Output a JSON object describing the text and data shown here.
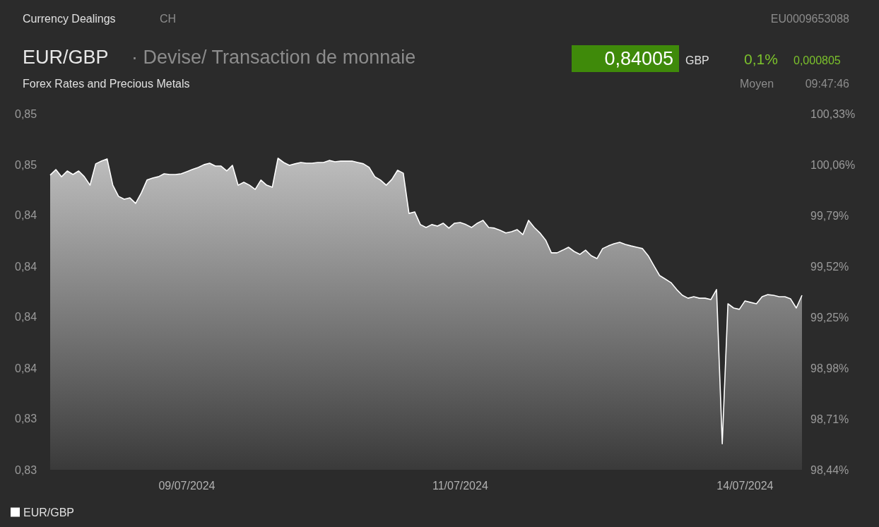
{
  "chart_data": {
    "type": "area",
    "title": "EUR/GBP",
    "subtitle": "· Devise/ Transaction de monnaie",
    "annotations": [
      "Currency Dealings",
      "CH",
      "EU0009653088",
      "Forex Rates and Precious Metals",
      "0,84005",
      "GBP",
      "0,1%",
      "0,000805",
      "Moyen",
      "09:47:46"
    ],
    "legend": "bottom left",
    "categories": [
      null,
      null,
      null,
      null,
      null,
      null,
      null,
      null,
      null,
      null,
      null,
      null,
      null,
      null,
      null,
      null,
      null,
      null,
      null,
      null,
      null,
      null,
      null,
      null,
      "09/07/2024",
      null,
      null,
      null,
      null,
      null,
      null,
      null,
      null,
      null,
      null,
      null,
      null,
      null,
      null,
      null,
      null,
      null,
      null,
      null,
      null,
      null,
      null,
      null,
      null,
      null,
      null,
      null,
      null,
      null,
      null,
      null,
      null,
      null,
      null,
      null,
      null,
      null,
      null,
      null,
      null,
      null,
      null,
      null,
      null,
      null,
      null,
      null,
      "11/07/2024",
      null,
      null,
      null,
      null,
      null,
      null,
      null,
      null,
      null,
      null,
      null,
      null,
      null,
      null,
      null,
      null,
      null,
      null,
      null,
      null,
      null,
      null,
      null,
      null,
      null,
      null,
      null,
      null,
      null,
      null,
      null,
      null,
      null,
      null,
      null,
      null,
      null,
      null,
      null,
      null,
      null,
      null,
      null,
      null,
      null,
      null,
      null,
      null,
      null,
      "14/07/2024",
      null,
      null,
      null,
      null,
      null,
      null,
      null,
      null,
      null,
      null
    ],
    "ylim": [
      0.8321,
      0.8481
    ],
    "yticks": [
      {
        "value": 0.8321,
        "label": "0,83"
      },
      {
        "value": 0.83439,
        "label": "0,83"
      },
      {
        "value": 0.83667,
        "label": "0,84"
      },
      {
        "value": 0.83896,
        "label": "0,84"
      },
      {
        "value": 0.84124,
        "label": "0,84"
      },
      {
        "value": 0.84353,
        "label": "0,84"
      },
      {
        "value": 0.84581,
        "label": "0,85"
      },
      {
        "value": 0.8481,
        "label": "0,85"
      }
    ],
    "y2lim": [
      98.44,
      100.33
    ],
    "y2ticks": [
      {
        "value": 98.44,
        "label": "98,44%"
      },
      {
        "value": 98.71,
        "label": "98,71%"
      },
      {
        "value": 98.98,
        "label": "98,98%"
      },
      {
        "value": 99.25,
        "label": "99,25%"
      },
      {
        "value": 99.52,
        "label": "99,52%"
      },
      {
        "value": 99.79,
        "label": "99,79%"
      },
      {
        "value": 100.06,
        "label": "100,06%"
      },
      {
        "value": 100.33,
        "label": "100,33%"
      }
    ],
    "series": [
      {
        "name": "EUR/GBP",
        "color": "#ffffff",
        "values": [
          0.84534,
          0.84559,
          0.84527,
          0.84553,
          0.84537,
          0.84553,
          0.84527,
          0.84489,
          0.84585,
          0.84597,
          0.84607,
          0.84489,
          0.84439,
          0.84426,
          0.84432,
          0.84407,
          0.84454,
          0.84512,
          0.84521,
          0.84527,
          0.8454,
          0.84537,
          0.84537,
          0.8454,
          0.8455,
          0.8456,
          0.84569,
          0.84581,
          0.84588,
          0.84575,
          0.84575,
          0.84553,
          0.84578,
          0.84489,
          0.84502,
          0.84489,
          0.8447,
          0.84512,
          0.84489,
          0.8448,
          0.8461,
          0.84591,
          0.84578,
          0.84585,
          0.84591,
          0.84588,
          0.84588,
          0.84591,
          0.84591,
          0.846,
          0.84594,
          0.84597,
          0.84597,
          0.84597,
          0.84591,
          0.84585,
          0.84569,
          0.84527,
          0.84512,
          0.84489,
          0.84515,
          0.84556,
          0.84543,
          0.84362,
          0.84369,
          0.84312,
          0.84299,
          0.84312,
          0.84305,
          0.84318,
          0.84296,
          0.84318,
          0.84321,
          0.84312,
          0.84299,
          0.84318,
          0.84331,
          0.84299,
          0.84296,
          0.84286,
          0.84274,
          0.8428,
          0.84289,
          0.84267,
          0.84331,
          0.84299,
          0.84274,
          0.84242,
          0.84185,
          0.84185,
          0.84197,
          0.8421,
          0.84191,
          0.84178,
          0.84197,
          0.84172,
          0.84159,
          0.84204,
          0.84216,
          0.84226,
          0.84232,
          0.84223,
          0.84216,
          0.8421,
          0.84204,
          0.84172,
          0.84127,
          0.84083,
          0.84067,
          0.84051,
          0.8402,
          0.83994,
          0.83981,
          0.83988,
          0.83981,
          0.83981,
          0.83975,
          0.8402,
          0.83327,
          0.83956,
          0.83937,
          0.83931,
          0.83969,
          0.83962,
          0.83956,
          0.83988,
          0.83997,
          0.83994,
          0.83988,
          0.83988,
          0.83978,
          0.83937,
          0.83994
        ]
      }
    ]
  }
}
